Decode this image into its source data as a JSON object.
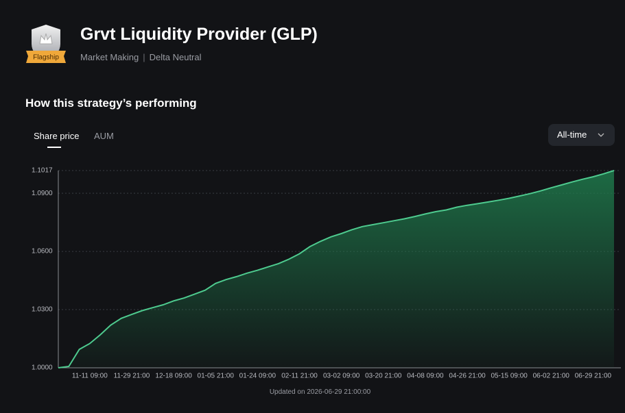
{
  "header": {
    "badge": "Flagship",
    "title": "Grvt Liquidity Provider (GLP)",
    "tags": [
      "Market Making",
      "Delta Neutral"
    ]
  },
  "section_title": "How this strategy’s performing",
  "tabs": [
    "Share price",
    "AUM"
  ],
  "range_select": "All-time",
  "footer": "Updated on 2026-06-29 21:00:00",
  "chart_data": {
    "type": "line",
    "categories": [
      null,
      null,
      null,
      "11-11 09:00",
      null,
      null,
      null,
      "11-29 21:00",
      null,
      null,
      null,
      "12-18 09:00",
      null,
      null,
      null,
      "01-05 21:00",
      null,
      null,
      null,
      "01-24 09:00",
      null,
      null,
      null,
      "02-11 21:00",
      null,
      null,
      null,
      "03-02 09:00",
      null,
      null,
      null,
      "03-20 21:00",
      null,
      null,
      null,
      "04-08 09:00",
      null,
      null,
      null,
      "04-26 21:00",
      null,
      null,
      null,
      "05-15 09:00",
      null,
      null,
      null,
      "06-02 21:00",
      null,
      null,
      null,
      "06-29 21:00",
      null,
      null
    ],
    "values": [
      1.0,
      1.0007,
      1.0095,
      1.0125,
      1.017,
      1.022,
      1.0255,
      1.0275,
      1.0295,
      1.031,
      1.0325,
      1.0345,
      1.036,
      1.038,
      1.04,
      1.0435,
      1.0455,
      1.047,
      1.0488,
      1.0503,
      1.052,
      1.0537,
      1.056,
      1.0588,
      1.0625,
      1.0652,
      1.0675,
      1.0692,
      1.0712,
      1.0728,
      1.0738,
      1.0748,
      1.0758,
      1.0768,
      1.078,
      1.0793,
      1.0805,
      1.0814,
      1.0828,
      1.0838,
      1.0846,
      1.0855,
      1.0864,
      1.0874,
      1.0886,
      1.0898,
      1.0912,
      1.0928,
      1.0943,
      1.0958,
      1.0972,
      1.0985,
      1.1,
      1.1017
    ],
    "color": "#4ecb8f",
    "ylim": [
      1.0,
      1.1017
    ],
    "yticks": [
      {
        "value": 1.0,
        "label": "1.0000"
      },
      {
        "value": 1.03,
        "label": "1.0300"
      },
      {
        "value": 1.06,
        "label": "1.0600"
      },
      {
        "value": 1.09,
        "label": "1.0900"
      },
      {
        "value": 1.1017,
        "label": "1.1017"
      }
    ],
    "grid": true
  }
}
